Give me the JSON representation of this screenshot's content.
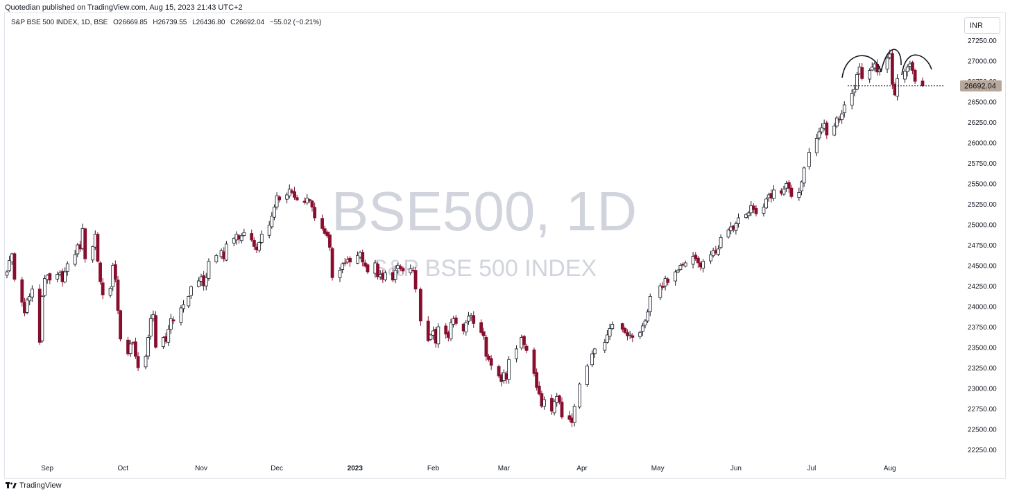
{
  "header": {
    "published": "Quotedian published on TradingView.com, Aug 15, 2023 21:43 UTC+2",
    "symbol_line": "S&P BSE 500 INDEX, 1D, BSE",
    "open": "O26669.85",
    "high": "H26739.55",
    "low": "L26436.80",
    "close": "C26692.04",
    "change": "−55.02 (−0.21%)",
    "currency": "INR"
  },
  "watermark": {
    "ticker": "BSE500, 1D",
    "name": "S&P BSE 500 INDEX"
  },
  "footer": {
    "brand": "TradingView"
  },
  "last_price_label": "26692.04",
  "colors": {
    "up": "#ffffff",
    "up_border": "#131722",
    "down": "#880e2e",
    "wick": "#131722",
    "tag_bg": "#b8a89a"
  },
  "chart_data": {
    "type": "candlestick",
    "yticks": [
      "27250.00",
      "27000.00",
      "26750.00",
      "26500.00",
      "26250.00",
      "26000.00",
      "25750.00",
      "25500.00",
      "25250.00",
      "25000.00",
      "24750.00",
      "24500.00",
      "24250.00",
      "24000.00",
      "23750.00",
      "23500.00",
      "23250.00",
      "23000.00",
      "22750.00",
      "22500.00",
      "22250.00"
    ],
    "ylim": [
      22150,
      27500
    ],
    "xticks": [
      {
        "label": "Sep",
        "date": "2022-09-01"
      },
      {
        "label": "Oct",
        "date": "2022-10-01"
      },
      {
        "label": "Nov",
        "date": "2022-11-01"
      },
      {
        "label": "Dec",
        "date": "2022-12-01"
      },
      {
        "label": "2023",
        "date": "2023-01-01",
        "bold": true
      },
      {
        "label": "Feb",
        "date": "2023-02-01"
      },
      {
        "label": "Mar",
        "date": "2023-03-01"
      },
      {
        "label": "Apr",
        "date": "2023-04-01"
      },
      {
        "label": "May",
        "date": "2023-05-01"
      },
      {
        "label": "Jun",
        "date": "2023-06-01"
      },
      {
        "label": "Jul",
        "date": "2023-07-01"
      },
      {
        "label": "Aug",
        "date": "2023-08-01"
      }
    ],
    "last_close": 26692.04,
    "support_level": 26692,
    "closes": [
      {
        "date": "2022-08-16",
        "c": 24420
      },
      {
        "date": "2022-08-17",
        "c": 24560
      },
      {
        "date": "2022-08-18",
        "c": 24640
      },
      {
        "date": "2022-08-19",
        "c": 24330
      },
      {
        "date": "2022-08-22",
        "c": 24050
      },
      {
        "date": "2022-08-23",
        "c": 23920
      },
      {
        "date": "2022-08-24",
        "c": 24080
      },
      {
        "date": "2022-08-25",
        "c": 24120
      },
      {
        "date": "2022-08-26",
        "c": 24210
      },
      {
        "date": "2022-08-29",
        "c": 23560
      },
      {
        "date": "2022-08-30",
        "c": 24120
      },
      {
        "date": "2022-08-31",
        "c": 24340
      },
      {
        "date": "2022-09-01",
        "c": 24380
      },
      {
        "date": "2022-09-02",
        "c": 24320
      },
      {
        "date": "2022-09-05",
        "c": 24390
      },
      {
        "date": "2022-09-06",
        "c": 24410
      },
      {
        "date": "2022-09-07",
        "c": 24300
      },
      {
        "date": "2022-09-08",
        "c": 24420
      },
      {
        "date": "2022-09-09",
        "c": 24520
      },
      {
        "date": "2022-09-12",
        "c": 24630
      },
      {
        "date": "2022-09-13",
        "c": 24750
      },
      {
        "date": "2022-09-14",
        "c": 24700
      },
      {
        "date": "2022-09-15",
        "c": 24950
      },
      {
        "date": "2022-09-16",
        "c": 24580
      },
      {
        "date": "2022-09-19",
        "c": 24730
      },
      {
        "date": "2022-09-20",
        "c": 24880
      },
      {
        "date": "2022-09-21",
        "c": 24550
      },
      {
        "date": "2022-09-22",
        "c": 24300
      },
      {
        "date": "2022-09-23",
        "c": 24140
      },
      {
        "date": "2022-09-26",
        "c": 24220
      },
      {
        "date": "2022-09-27",
        "c": 24500
      },
      {
        "date": "2022-09-28",
        "c": 24330
      },
      {
        "date": "2022-09-29",
        "c": 23950
      },
      {
        "date": "2022-09-30",
        "c": 23600
      },
      {
        "date": "2022-10-03",
        "c": 23420
      },
      {
        "date": "2022-10-04",
        "c": 23540
      },
      {
        "date": "2022-10-05",
        "c": 23550
      },
      {
        "date": "2022-10-06",
        "c": 23390
      },
      {
        "date": "2022-10-07",
        "c": 23250
      },
      {
        "date": "2022-10-10",
        "c": 23390
      },
      {
        "date": "2022-10-11",
        "c": 23620
      },
      {
        "date": "2022-10-12",
        "c": 23850
      },
      {
        "date": "2022-10-13",
        "c": 23900
      },
      {
        "date": "2022-10-14",
        "c": 23500
      },
      {
        "date": "2022-10-17",
        "c": 23620
      },
      {
        "date": "2022-10-18",
        "c": 23570
      },
      {
        "date": "2022-10-19",
        "c": 23720
      },
      {
        "date": "2022-10-20",
        "c": 23850
      },
      {
        "date": "2022-10-21",
        "c": 23820
      },
      {
        "date": "2022-10-24",
        "c": 23980
      },
      {
        "date": "2022-10-25",
        "c": 24020
      },
      {
        "date": "2022-10-27",
        "c": 24120
      },
      {
        "date": "2022-10-28",
        "c": 24240
      },
      {
        "date": "2022-10-31",
        "c": 24310
      },
      {
        "date": "2022-11-01",
        "c": 24360
      },
      {
        "date": "2022-11-02",
        "c": 24250
      },
      {
        "date": "2022-11-03",
        "c": 24350
      },
      {
        "date": "2022-11-04",
        "c": 24550
      },
      {
        "date": "2022-11-07",
        "c": 24620
      },
      {
        "date": "2022-11-09",
        "c": 24680
      },
      {
        "date": "2022-11-10",
        "c": 24580
      },
      {
        "date": "2022-11-11",
        "c": 24760
      },
      {
        "date": "2022-11-14",
        "c": 24830
      },
      {
        "date": "2022-11-15",
        "c": 24880
      },
      {
        "date": "2022-11-16",
        "c": 24820
      },
      {
        "date": "2022-11-17",
        "c": 24860
      },
      {
        "date": "2022-11-18",
        "c": 24900
      },
      {
        "date": "2022-11-21",
        "c": 24810
      },
      {
        "date": "2022-11-22",
        "c": 24730
      },
      {
        "date": "2022-11-23",
        "c": 24690
      },
      {
        "date": "2022-11-24",
        "c": 24780
      },
      {
        "date": "2022-11-25",
        "c": 24880
      },
      {
        "date": "2022-11-28",
        "c": 24990
      },
      {
        "date": "2022-11-29",
        "c": 25100
      },
      {
        "date": "2022-11-30",
        "c": 25210
      },
      {
        "date": "2022-12-01",
        "c": 25350
      },
      {
        "date": "2022-12-02",
        "c": 25300
      },
      {
        "date": "2022-12-05",
        "c": 25360
      },
      {
        "date": "2022-12-06",
        "c": 25430
      },
      {
        "date": "2022-12-07",
        "c": 25390
      },
      {
        "date": "2022-12-08",
        "c": 25330
      },
      {
        "date": "2022-12-09",
        "c": 25300
      },
      {
        "date": "2022-12-12",
        "c": 25270
      },
      {
        "date": "2022-12-13",
        "c": 25320
      },
      {
        "date": "2022-12-14",
        "c": 25290
      },
      {
        "date": "2022-12-15",
        "c": 25210
      },
      {
        "date": "2022-12-16",
        "c": 25080
      },
      {
        "date": "2022-12-19",
        "c": 24950
      },
      {
        "date": "2022-12-20",
        "c": 24890
      },
      {
        "date": "2022-12-21",
        "c": 24860
      },
      {
        "date": "2022-12-22",
        "c": 24720
      },
      {
        "date": "2022-12-23",
        "c": 24350
      },
      {
        "date": "2022-12-26",
        "c": 24440
      },
      {
        "date": "2022-12-27",
        "c": 24520
      },
      {
        "date": "2022-12-28",
        "c": 24530
      },
      {
        "date": "2022-12-29",
        "c": 24570
      },
      {
        "date": "2022-12-30",
        "c": 24540
      },
      {
        "date": "2023-01-02",
        "c": 24620
      },
      {
        "date": "2023-01-03",
        "c": 24660
      },
      {
        "date": "2023-01-04",
        "c": 24540
      },
      {
        "date": "2023-01-05",
        "c": 24490
      },
      {
        "date": "2023-01-06",
        "c": 24420
      },
      {
        "date": "2023-01-09",
        "c": 24530
      },
      {
        "date": "2023-01-10",
        "c": 24360
      },
      {
        "date": "2023-01-11",
        "c": 24390
      },
      {
        "date": "2023-01-12",
        "c": 24330
      },
      {
        "date": "2023-01-13",
        "c": 24410
      },
      {
        "date": "2023-01-16",
        "c": 24320
      },
      {
        "date": "2023-01-17",
        "c": 24440
      },
      {
        "date": "2023-01-18",
        "c": 24500
      },
      {
        "date": "2023-01-19",
        "c": 24460
      },
      {
        "date": "2023-01-20",
        "c": 24430
      },
      {
        "date": "2023-01-23",
        "c": 24460
      },
      {
        "date": "2023-01-24",
        "c": 24440
      },
      {
        "date": "2023-01-25",
        "c": 24210
      },
      {
        "date": "2023-01-27",
        "c": 23820
      },
      {
        "date": "2023-01-30",
        "c": 23580
      },
      {
        "date": "2023-01-31",
        "c": 23650
      },
      {
        "date": "2023-02-01",
        "c": 23700
      },
      {
        "date": "2023-02-02",
        "c": 23550
      },
      {
        "date": "2023-02-03",
        "c": 23750
      },
      {
        "date": "2023-02-06",
        "c": 23660
      },
      {
        "date": "2023-02-07",
        "c": 23620
      },
      {
        "date": "2023-02-08",
        "c": 23800
      },
      {
        "date": "2023-02-09",
        "c": 23850
      },
      {
        "date": "2023-02-10",
        "c": 23790
      },
      {
        "date": "2023-02-13",
        "c": 23700
      },
      {
        "date": "2023-02-14",
        "c": 23800
      },
      {
        "date": "2023-02-15",
        "c": 23880
      },
      {
        "date": "2023-02-16",
        "c": 23890
      },
      {
        "date": "2023-02-17",
        "c": 23790
      },
      {
        "date": "2023-02-20",
        "c": 23680
      },
      {
        "date": "2023-02-21",
        "c": 23640
      },
      {
        "date": "2023-02-22",
        "c": 23390
      },
      {
        "date": "2023-02-23",
        "c": 23350
      },
      {
        "date": "2023-02-24",
        "c": 23280
      },
      {
        "date": "2023-02-27",
        "c": 23150
      },
      {
        "date": "2023-02-28",
        "c": 23080
      },
      {
        "date": "2023-03-01",
        "c": 23190
      },
      {
        "date": "2023-03-02",
        "c": 23110
      },
      {
        "date": "2023-03-03",
        "c": 23350
      },
      {
        "date": "2023-03-06",
        "c": 23480
      },
      {
        "date": "2023-03-08",
        "c": 23620
      },
      {
        "date": "2023-03-09",
        "c": 23530
      },
      {
        "date": "2023-03-10",
        "c": 23460
      },
      {
        "date": "2023-03-13",
        "c": 23180
      },
      {
        "date": "2023-03-14",
        "c": 23010
      },
      {
        "date": "2023-03-15",
        "c": 22930
      },
      {
        "date": "2023-03-16",
        "c": 22780
      },
      {
        "date": "2023-03-17",
        "c": 22860
      },
      {
        "date": "2023-03-20",
        "c": 22720
      },
      {
        "date": "2023-03-21",
        "c": 22840
      },
      {
        "date": "2023-03-22",
        "c": 22900
      },
      {
        "date": "2023-03-23",
        "c": 22830
      },
      {
        "date": "2023-03-24",
        "c": 22650
      },
      {
        "date": "2023-03-27",
        "c": 22620
      },
      {
        "date": "2023-03-28",
        "c": 22580
      },
      {
        "date": "2023-03-29",
        "c": 22780
      },
      {
        "date": "2023-03-31",
        "c": 23050
      },
      {
        "date": "2023-04-03",
        "c": 23270
      },
      {
        "date": "2023-04-05",
        "c": 23420
      },
      {
        "date": "2023-04-06",
        "c": 23480
      },
      {
        "date": "2023-04-10",
        "c": 23560
      },
      {
        "date": "2023-04-11",
        "c": 23650
      },
      {
        "date": "2023-04-12",
        "c": 23730
      },
      {
        "date": "2023-04-13",
        "c": 23780
      },
      {
        "date": "2023-04-17",
        "c": 23720
      },
      {
        "date": "2023-04-18",
        "c": 23680
      },
      {
        "date": "2023-04-19",
        "c": 23640
      },
      {
        "date": "2023-04-20",
        "c": 23660
      },
      {
        "date": "2023-04-21",
        "c": 23620
      },
      {
        "date": "2023-04-24",
        "c": 23680
      },
      {
        "date": "2023-04-25",
        "c": 23760
      },
      {
        "date": "2023-04-26",
        "c": 23820
      },
      {
        "date": "2023-04-27",
        "c": 23930
      },
      {
        "date": "2023-04-28",
        "c": 24120
      },
      {
        "date": "2023-05-02",
        "c": 24250
      },
      {
        "date": "2023-05-03",
        "c": 24230
      },
      {
        "date": "2023-05-04",
        "c": 24340
      },
      {
        "date": "2023-05-05",
        "c": 24290
      },
      {
        "date": "2023-05-08",
        "c": 24420
      },
      {
        "date": "2023-05-09",
        "c": 24440
      },
      {
        "date": "2023-05-10",
        "c": 24500
      },
      {
        "date": "2023-05-11",
        "c": 24510
      },
      {
        "date": "2023-05-12",
        "c": 24530
      },
      {
        "date": "2023-05-15",
        "c": 24610
      },
      {
        "date": "2023-05-16",
        "c": 24580
      },
      {
        "date": "2023-05-17",
        "c": 24530
      },
      {
        "date": "2023-05-18",
        "c": 24480
      },
      {
        "date": "2023-05-19",
        "c": 24550
      },
      {
        "date": "2023-05-22",
        "c": 24630
      },
      {
        "date": "2023-05-23",
        "c": 24680
      },
      {
        "date": "2023-05-24",
        "c": 24650
      },
      {
        "date": "2023-05-25",
        "c": 24700
      },
      {
        "date": "2023-05-26",
        "c": 24840
      },
      {
        "date": "2023-05-29",
        "c": 24930
      },
      {
        "date": "2023-05-30",
        "c": 24970
      },
      {
        "date": "2023-05-31",
        "c": 24940
      },
      {
        "date": "2023-06-01",
        "c": 25010
      },
      {
        "date": "2023-06-02",
        "c": 25080
      },
      {
        "date": "2023-06-05",
        "c": 25120
      },
      {
        "date": "2023-06-06",
        "c": 25140
      },
      {
        "date": "2023-06-07",
        "c": 25230
      },
      {
        "date": "2023-06-08",
        "c": 25180
      },
      {
        "date": "2023-06-09",
        "c": 25130
      },
      {
        "date": "2023-06-12",
        "c": 25210
      },
      {
        "date": "2023-06-13",
        "c": 25310
      },
      {
        "date": "2023-06-14",
        "c": 25360
      },
      {
        "date": "2023-06-15",
        "c": 25320
      },
      {
        "date": "2023-06-16",
        "c": 25420
      },
      {
        "date": "2023-06-19",
        "c": 25380
      },
      {
        "date": "2023-06-20",
        "c": 25430
      },
      {
        "date": "2023-06-21",
        "c": 25500
      },
      {
        "date": "2023-06-22",
        "c": 25440
      },
      {
        "date": "2023-06-23",
        "c": 25340
      },
      {
        "date": "2023-06-26",
        "c": 25390
      },
      {
        "date": "2023-06-27",
        "c": 25520
      },
      {
        "date": "2023-06-28",
        "c": 25690
      },
      {
        "date": "2023-06-30",
        "c": 25880
      },
      {
        "date": "2023-07-03",
        "c": 26050
      },
      {
        "date": "2023-07-04",
        "c": 26130
      },
      {
        "date": "2023-07-05",
        "c": 26180
      },
      {
        "date": "2023-07-06",
        "c": 26230
      },
      {
        "date": "2023-07-07",
        "c": 26090
      },
      {
        "date": "2023-07-10",
        "c": 26200
      },
      {
        "date": "2023-07-11",
        "c": 26300
      },
      {
        "date": "2023-07-12",
        "c": 26280
      },
      {
        "date": "2023-07-13",
        "c": 26350
      },
      {
        "date": "2023-07-14",
        "c": 26460
      },
      {
        "date": "2023-07-17",
        "c": 26600
      },
      {
        "date": "2023-07-18",
        "c": 26650
      },
      {
        "date": "2023-07-19",
        "c": 26830
      },
      {
        "date": "2023-07-20",
        "c": 26920
      },
      {
        "date": "2023-07-21",
        "c": 26780
      },
      {
        "date": "2023-07-24",
        "c": 26880
      },
      {
        "date": "2023-07-25",
        "c": 26920
      },
      {
        "date": "2023-07-26",
        "c": 26960
      },
      {
        "date": "2023-07-27",
        "c": 26860
      },
      {
        "date": "2023-07-28",
        "c": 26900
      },
      {
        "date": "2023-07-31",
        "c": 27030
      },
      {
        "date": "2023-08-01",
        "c": 27080
      },
      {
        "date": "2023-08-02",
        "c": 26710
      },
      {
        "date": "2023-08-03",
        "c": 26580
      },
      {
        "date": "2023-08-04",
        "c": 26780
      },
      {
        "date": "2023-08-07",
        "c": 26870
      },
      {
        "date": "2023-08-08",
        "c": 26920
      },
      {
        "date": "2023-08-09",
        "c": 26960
      },
      {
        "date": "2023-08-10",
        "c": 26880
      },
      {
        "date": "2023-08-11",
        "c": 26747
      },
      {
        "date": "2023-08-14",
        "c": 26692.04
      }
    ]
  }
}
